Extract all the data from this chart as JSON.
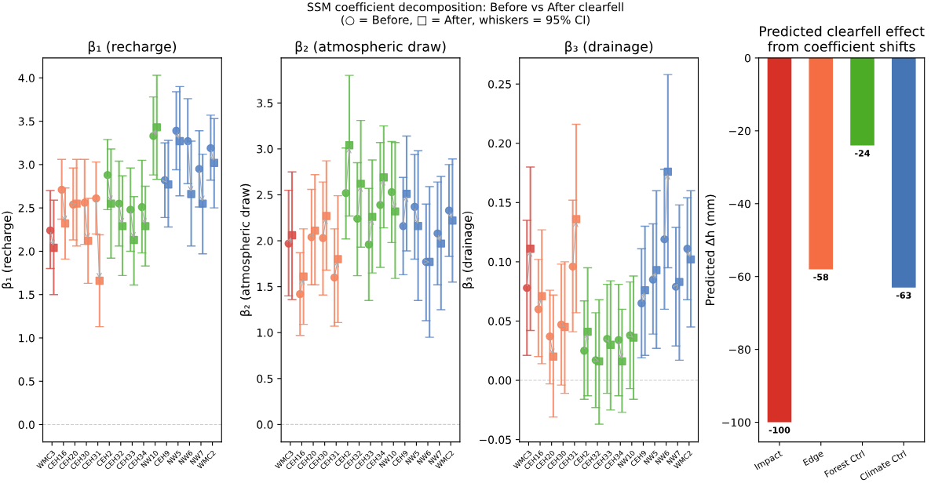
{
  "chart_data": [
    {
      "type": "scatter",
      "title": "β₁ (recharge)",
      "ylabel": "β₁ (recharge)",
      "annotations": [
        "SSM coefficient decomposition: Before vs After clearfell\n(○ = Before, □ = After, whiskers = 95% CI)"
      ],
      "categories": [
        "WMC3",
        "CEH16",
        "CEH20",
        "CEH30",
        "CEH31",
        "CEH2",
        "CEH32",
        "CEH33",
        "CEH34",
        "NW10",
        "CEH9",
        "NW5",
        "NW6",
        "NW7",
        "WMC2"
      ],
      "ylim": [
        -0.2,
        4.23
      ],
      "yticks": [
        {
          "value": 0,
          "label": "0.0"
        },
        {
          "value": 0.5,
          "label": "0.5"
        },
        {
          "value": 1,
          "label": "1.0"
        },
        {
          "value": 1.5,
          "label": "1.5"
        },
        {
          "value": 2,
          "label": "2.0"
        },
        {
          "value": 2.5,
          "label": "2.5"
        },
        {
          "value": 3,
          "label": "3.0"
        },
        {
          "value": 3.5,
          "label": "3.5"
        },
        {
          "value": 4,
          "label": "4.0"
        }
      ],
      "ref_lines": [
        {
          "axis": "y",
          "value": 0,
          "color": "#cccccc",
          "line_style": "dashed"
        }
      ],
      "grid": false,
      "legend": false,
      "series": [
        {
          "marker": "circle",
          "colors": [
            "#d9504a",
            "#f4845f",
            "#f4845f",
            "#f4845f",
            "#f4845f",
            "#5fb84a",
            "#5fb84a",
            "#5fb84a",
            "#5fb84a",
            "#5fb84a",
            "#5b86c5",
            "#5b86c5",
            "#5b86c5",
            "#5b86c5",
            "#5b86c5"
          ],
          "values": [
            2.24,
            2.71,
            2.54,
            2.56,
            2.61,
            2.88,
            2.55,
            2.48,
            2.51,
            3.33,
            2.82,
            3.39,
            3.27,
            2.95,
            3.19
          ],
          "errors": [
            [
              1.8,
              2.7
            ],
            [
              2.37,
              3.06
            ],
            [
              2.13,
              2.96
            ],
            [
              2.08,
              3.06
            ],
            [
              2.2,
              3.03
            ],
            [
              2.48,
              3.29
            ],
            [
              2.06,
              3.04
            ],
            [
              2.0,
              2.96
            ],
            [
              1.98,
              3.05
            ],
            [
              2.88,
              3.78
            ],
            [
              2.39,
              3.25
            ],
            [
              2.94,
              3.84
            ],
            [
              2.78,
              3.76
            ],
            [
              2.51,
              3.39
            ],
            [
              2.82,
              3.57
            ]
          ]
        },
        {
          "marker": "square",
          "colors": [
            "#d9504a",
            "#f4845f",
            "#f4845f",
            "#f4845f",
            "#f4845f",
            "#5fb84a",
            "#5fb84a",
            "#5fb84a",
            "#5fb84a",
            "#5fb84a",
            "#5b86c5",
            "#5b86c5",
            "#5b86c5",
            "#5b86c5",
            "#5b86c5"
          ],
          "values": [
            2.04,
            2.32,
            2.55,
            2.12,
            1.66,
            2.55,
            2.29,
            2.13,
            2.29,
            3.43,
            2.77,
            3.27,
            2.66,
            2.55,
            3.02
          ],
          "errors": [
            [
              1.5,
              2.59
            ],
            [
              1.91,
              2.73
            ],
            [
              2.06,
              3.06
            ],
            [
              1.63,
              2.61
            ],
            [
              1.13,
              2.19
            ],
            [
              1.92,
              3.18
            ],
            [
              1.72,
              2.87
            ],
            [
              1.61,
              2.63
            ],
            [
              1.83,
              2.75
            ],
            [
              2.83,
              4.03
            ],
            [
              2.28,
              3.28
            ],
            [
              2.64,
              3.9
            ],
            [
              2.06,
              3.27
            ],
            [
              1.97,
              3.12
            ],
            [
              2.5,
              3.53
            ]
          ]
        }
      ]
    },
    {
      "type": "scatter",
      "title": "β₂ (atmospheric draw)",
      "ylabel": "β₂ (atmospheric draw)",
      "categories": [
        "WMC3",
        "CEH16",
        "CEH20",
        "CEH30",
        "CEH31",
        "CEH2",
        "CEH32",
        "CEH33",
        "CEH34",
        "NW10",
        "CEH9",
        "NW5",
        "NW6",
        "NW7",
        "WMC2"
      ],
      "ylim": [
        -0.19,
        3.99
      ],
      "yticks": [
        {
          "value": 0,
          "label": "0.0"
        },
        {
          "value": 0.5,
          "label": "0.5"
        },
        {
          "value": 1,
          "label": "1.0"
        },
        {
          "value": 1.5,
          "label": "1.5"
        },
        {
          "value": 2,
          "label": "2.0"
        },
        {
          "value": 2.5,
          "label": "2.5"
        },
        {
          "value": 3,
          "label": "3.0"
        },
        {
          "value": 3.5,
          "label": "3.5"
        }
      ],
      "ref_lines": [
        {
          "axis": "y",
          "value": 0,
          "color": "#cccccc",
          "line_style": "dashed"
        }
      ],
      "grid": false,
      "legend": false,
      "series": [
        {
          "marker": "circle",
          "colors": [
            "#d9504a",
            "#f4845f",
            "#f4845f",
            "#f4845f",
            "#f4845f",
            "#5fb84a",
            "#5fb84a",
            "#5fb84a",
            "#5fb84a",
            "#5fb84a",
            "#5b86c5",
            "#5b86c5",
            "#5b86c5",
            "#5b86c5",
            "#5b86c5"
          ],
          "values": [
            1.97,
            1.42,
            2.04,
            2.03,
            1.6,
            2.52,
            2.24,
            1.96,
            2.39,
            2.53,
            2.16,
            2.37,
            1.77,
            2.08,
            2.33
          ],
          "errors": [
            [
              1.4,
              2.55
            ],
            [
              0.97,
              1.87
            ],
            [
              1.52,
              2.56
            ],
            [
              1.41,
              2.64
            ],
            [
              1.07,
              2.13
            ],
            [
              2.02,
              3.01
            ],
            [
              1.62,
              2.85
            ],
            [
              1.35,
              2.57
            ],
            [
              1.71,
              3.07
            ],
            [
              1.98,
              3.08
            ],
            [
              1.63,
              2.69
            ],
            [
              1.8,
              2.94
            ],
            [
              1.13,
              2.4
            ],
            [
              1.52,
              2.64
            ],
            [
              1.83,
              2.83
            ]
          ]
        },
        {
          "marker": "square",
          "colors": [
            "#d9504a",
            "#f4845f",
            "#f4845f",
            "#f4845f",
            "#f4845f",
            "#5fb84a",
            "#5fb84a",
            "#5fb84a",
            "#5fb84a",
            "#5fb84a",
            "#5b86c5",
            "#5b86c5",
            "#5b86c5",
            "#5b86c5",
            "#5b86c5"
          ],
          "values": [
            2.06,
            1.61,
            2.11,
            2.27,
            1.8,
            3.04,
            2.62,
            2.26,
            2.69,
            2.32,
            2.51,
            2.16,
            1.77,
            1.97,
            2.22
          ],
          "errors": [
            [
              1.36,
              2.75
            ],
            [
              1.09,
              2.13
            ],
            [
              1.52,
              2.72
            ],
            [
              1.68,
              2.87
            ],
            [
              1.11,
              2.49
            ],
            [
              2.27,
              3.8
            ],
            [
              1.93,
              3.31
            ],
            [
              1.65,
              2.88
            ],
            [
              2.14,
              3.25
            ],
            [
              1.59,
              3.07
            ],
            [
              1.89,
              3.14
            ],
            [
              1.35,
              2.98
            ],
            [
              0.95,
              2.59
            ],
            [
              1.25,
              2.7
            ],
            [
              1.55,
              2.89
            ]
          ]
        }
      ]
    },
    {
      "type": "scatter",
      "title": "β₃ (drainage)",
      "ylabel": "β₃ (drainage)",
      "categories": [
        "WMC3",
        "CEH16",
        "CEH20",
        "CEH30",
        "CEH31",
        "CEH2",
        "CEH32",
        "CEH33",
        "CEH34",
        "NW10",
        "CEH9",
        "NW5",
        "NW6",
        "NW7",
        "WMC2"
      ],
      "ylim": [
        -0.052,
        0.272
      ],
      "yticks": [
        {
          "value": -0.05,
          "label": "−0.05"
        },
        {
          "value": 0,
          "label": "0.00"
        },
        {
          "value": 0.05,
          "label": "0.05"
        },
        {
          "value": 0.1,
          "label": "0.10"
        },
        {
          "value": 0.15,
          "label": "0.15"
        },
        {
          "value": 0.2,
          "label": "0.20"
        },
        {
          "value": 0.25,
          "label": "0.25"
        }
      ],
      "ref_lines": [
        {
          "axis": "y",
          "value": 0,
          "color": "#cccccc",
          "line_style": "dashed"
        }
      ],
      "grid": false,
      "legend": false,
      "series": [
        {
          "marker": "circle",
          "colors": [
            "#d9504a",
            "#f4845f",
            "#f4845f",
            "#f4845f",
            "#f4845f",
            "#5fb84a",
            "#5fb84a",
            "#5fb84a",
            "#5fb84a",
            "#5fb84a",
            "#5b86c5",
            "#5b86c5",
            "#5b86c5",
            "#5b86c5",
            "#5b86c5"
          ],
          "values": [
            0.078,
            0.06,
            0.037,
            0.047,
            0.096,
            0.025,
            0.017,
            0.035,
            0.034,
            0.038,
            0.065,
            0.085,
            0.119,
            0.079,
            0.111
          ],
          "errors": [
            [
              0.021,
              0.135
            ],
            [
              0.02,
              0.102
            ],
            [
              -0.003,
              0.076
            ],
            [
              -0.004,
              0.098
            ],
            [
              0.041,
              0.152
            ],
            [
              -0.016,
              0.067
            ],
            [
              -0.023,
              0.057
            ],
            [
              -0.011,
              0.081
            ],
            [
              -0.013,
              0.081
            ],
            [
              -0.007,
              0.083
            ],
            [
              0.019,
              0.111
            ],
            [
              0.039,
              0.132
            ],
            [
              0.06,
              0.178
            ],
            [
              0.029,
              0.129
            ],
            [
              0.068,
              0.154
            ]
          ]
        },
        {
          "marker": "square",
          "colors": [
            "#d9504a",
            "#f4845f",
            "#f4845f",
            "#f4845f",
            "#f4845f",
            "#5fb84a",
            "#5fb84a",
            "#5fb84a",
            "#5fb84a",
            "#5fb84a",
            "#5b86c5",
            "#5b86c5",
            "#5b86c5",
            "#5b86c5",
            "#5b86c5"
          ],
          "values": [
            0.111,
            0.071,
            0.02,
            0.045,
            0.136,
            0.041,
            0.016,
            0.03,
            0.016,
            0.036,
            0.076,
            0.093,
            0.176,
            0.083,
            0.102
          ],
          "errors": [
            [
              0.042,
              0.18
            ],
            [
              0.014,
              0.127
            ],
            [
              -0.031,
              0.072
            ],
            [
              -0.011,
              0.1
            ],
            [
              0.057,
              0.216
            ],
            [
              -0.013,
              0.095
            ],
            [
              -0.037,
              0.068
            ],
            [
              -0.025,
              0.084
            ],
            [
              -0.027,
              0.06
            ],
            [
              -0.016,
              0.088
            ],
            [
              0.021,
              0.13
            ],
            [
              0.027,
              0.16
            ],
            [
              0.095,
              0.258
            ],
            [
              0.017,
              0.148
            ],
            [
              0.045,
              0.16
            ]
          ]
        }
      ]
    },
    {
      "type": "bar",
      "title": "Predicted clearfell effect\nfrom coefficient shifts",
      "ylabel": "Predicted Δh (mm)",
      "categories": [
        "Impact",
        "Edge",
        "Forest Ctrl",
        "Climate Ctrl"
      ],
      "values": [
        -100,
        -58,
        -24,
        -63
      ],
      "colors": [
        "#d73027",
        "#f46d43",
        "#4dac26",
        "#4575b4"
      ],
      "data_labels": true,
      "ylim": [
        -105.4,
        0
      ],
      "yticks": [
        {
          "value": -100,
          "label": "−100"
        },
        {
          "value": -80,
          "label": "−80"
        },
        {
          "value": -60,
          "label": "−60"
        },
        {
          "value": -40,
          "label": "−40"
        },
        {
          "value": -20,
          "label": "−20"
        },
        {
          "value": 0,
          "label": "0"
        }
      ],
      "grid": false,
      "legend": false
    }
  ]
}
